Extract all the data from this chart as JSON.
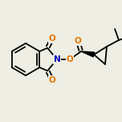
{
  "bg_color": "#eeeee4",
  "bond_color": "#000000",
  "bond_width": 1.3,
  "atom_colors": {
    "O": "#e07800",
    "N": "#0000bb",
    "C": "#000000"
  },
  "font_size_atom": 7.5,
  "fig_size": [
    1.52,
    1.52
  ],
  "dpi": 100
}
